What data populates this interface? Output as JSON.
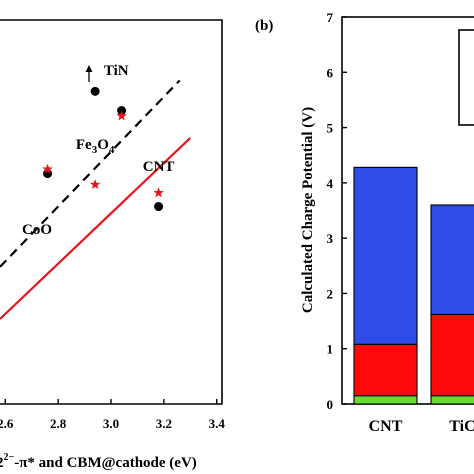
{
  "chart_data": [
    {
      "type": "scatter",
      "panel_label": "",
      "xlabel_parts": [
        "2",
        "2−",
        "-π* and CBM@cathode (eV)"
      ],
      "xticks": [
        2.6,
        2.8,
        3.0,
        3.2,
        3.4
      ],
      "xlim": [
        2.58,
        3.42
      ],
      "ylim": [
        0,
        7
      ],
      "series": [
        {
          "marker": "circle",
          "color": "#000000",
          "points": [
            {
              "x": 2.76,
              "y": 4.2
            },
            {
              "x": 2.94,
              "y": 5.7
            },
            {
              "x": 3.04,
              "y": 5.35
            },
            {
              "x": 3.18,
              "y": 3.6
            }
          ]
        },
        {
          "marker": "star",
          "color": "#e8141b",
          "points": [
            {
              "x": 2.76,
              "y": 4.28
            },
            {
              "x": 2.94,
              "y": 4.0
            },
            {
              "x": 3.04,
              "y": 5.25
            },
            {
              "x": 3.18,
              "y": 3.85
            }
          ]
        }
      ],
      "fit_lines": [
        {
          "style": "dashed",
          "color": "#000000",
          "x": [
            2.58,
            3.26
          ],
          "y": [
            2.5,
            5.9
          ]
        },
        {
          "style": "solid",
          "color": "#e8141b",
          "x": [
            2.58,
            3.3
          ],
          "y": [
            1.55,
            4.85
          ]
        }
      ],
      "annotations": [
        {
          "text_parts": [
            "Fe",
            "3",
            "O",
            "4"
          ],
          "x": 2.94,
          "y": 4.65
        },
        {
          "text": "TiN",
          "x": 3.02,
          "y": 6.0
        },
        {
          "text": "CNT",
          "x": 3.18,
          "y": 4.25
        },
        {
          "text": "CoO",
          "x": 2.72,
          "y": 3.1
        }
      ]
    },
    {
      "type": "bar",
      "stacked": true,
      "panel_label": "(b)",
      "ylabel": "Calculated Charge Potential (V)",
      "yticks": [
        0,
        1,
        2,
        3,
        4,
        5,
        6,
        7
      ],
      "ylim": [
        0,
        7
      ],
      "categories": [
        "CNT",
        "TiC"
      ],
      "series": [
        {
          "color": "#66dd33",
          "values": [
            0.15,
            0.15
          ]
        },
        {
          "color": "#ff0a0a",
          "values": [
            0.93,
            1.47
          ]
        },
        {
          "color": "#2f4ce8",
          "values": [
            3.2,
            1.98
          ]
        }
      ]
    }
  ]
}
